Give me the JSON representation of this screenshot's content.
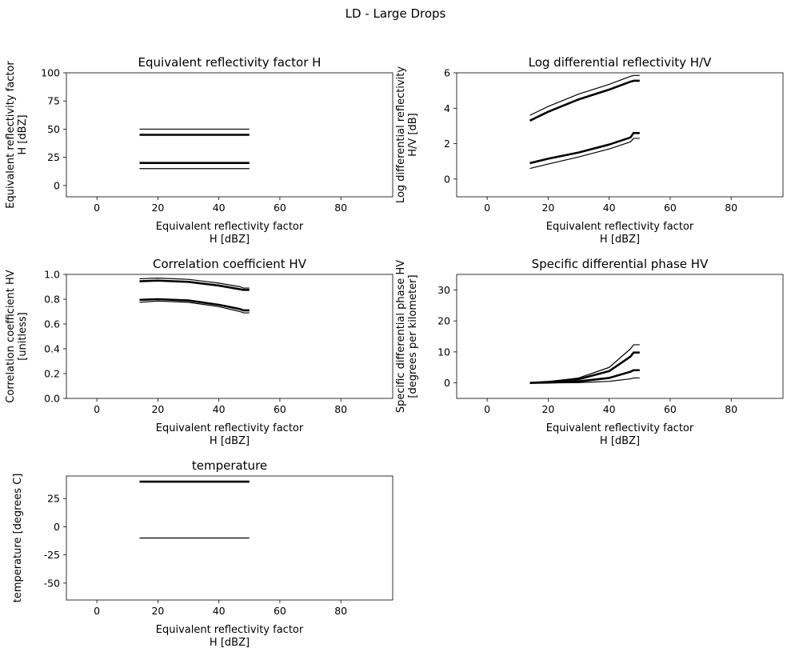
{
  "figure": {
    "suptitle": "LD - Large Drops"
  },
  "chart_data": [
    {
      "type": "line",
      "title": "Equivalent reflectivity factor H",
      "xlabel": [
        "Equivalent reflectivity factor",
        "H [dBZ]"
      ],
      "ylabel": [
        "Equivalent reflectivity factor",
        "H [dBZ]"
      ],
      "xlim": [
        -10,
        97
      ],
      "ylim": [
        -10,
        100
      ],
      "xticks": [
        0,
        20,
        40,
        60,
        80
      ],
      "yticks": [
        0,
        25,
        50,
        75,
        100
      ],
      "grid": false,
      "series": [
        {
          "weight": "thin",
          "x": [
            14,
            50
          ],
          "y": [
            50,
            50
          ]
        },
        {
          "weight": "thick",
          "x": [
            14,
            50
          ],
          "y": [
            45,
            45
          ]
        },
        {
          "weight": "thick",
          "x": [
            14,
            50
          ],
          "y": [
            20,
            20
          ]
        },
        {
          "weight": "thin",
          "x": [
            14,
            50
          ],
          "y": [
            15,
            15
          ]
        }
      ]
    },
    {
      "type": "line",
      "title": "Log differential reflectivity H/V",
      "xlabel": [
        "Equivalent reflectivity factor",
        "H [dBZ]"
      ],
      "ylabel": [
        "Log differential reflectivity",
        "H/V [dB]"
      ],
      "xlim": [
        -10,
        97
      ],
      "ylim": [
        -1,
        6
      ],
      "xticks": [
        0,
        20,
        40,
        60,
        80
      ],
      "yticks": [
        0,
        2,
        4,
        6
      ],
      "grid": false,
      "series": [
        {
          "weight": "thin",
          "x": [
            14,
            20,
            30,
            40,
            47,
            48,
            50
          ],
          "y": [
            3.6,
            4.1,
            4.8,
            5.35,
            5.8,
            5.85,
            5.85
          ]
        },
        {
          "weight": "thick",
          "x": [
            14,
            20,
            30,
            40,
            47,
            48,
            50
          ],
          "y": [
            3.3,
            3.8,
            4.5,
            5.05,
            5.5,
            5.55,
            5.55
          ]
        },
        {
          "weight": "thick",
          "x": [
            14,
            20,
            30,
            40,
            47,
            48,
            50
          ],
          "y": [
            0.9,
            1.15,
            1.5,
            1.95,
            2.35,
            2.6,
            2.6
          ]
        },
        {
          "weight": "thin",
          "x": [
            14,
            20,
            30,
            40,
            47,
            48,
            50
          ],
          "y": [
            0.6,
            0.85,
            1.25,
            1.7,
            2.1,
            2.3,
            2.3
          ]
        }
      ]
    },
    {
      "type": "line",
      "title": "Correlation coefficient HV",
      "xlabel": [
        "Equivalent reflectivity factor",
        "H [dBZ]"
      ],
      "ylabel": [
        "Correlation coefficient HV",
        "[unitless]"
      ],
      "xlim": [
        -10,
        97
      ],
      "ylim": [
        0,
        1
      ],
      "xticks": [
        0,
        20,
        40,
        60,
        80
      ],
      "yticks": [
        0.0,
        0.2,
        0.4,
        0.6,
        0.8,
        1.0
      ],
      "grid": false,
      "series": [
        {
          "weight": "thin",
          "x": [
            14,
            20,
            30,
            40,
            47,
            48,
            50
          ],
          "y": [
            0.965,
            0.97,
            0.96,
            0.93,
            0.9,
            0.89,
            0.89
          ]
        },
        {
          "weight": "thick",
          "x": [
            14,
            20,
            30,
            40,
            47,
            48,
            50
          ],
          "y": [
            0.945,
            0.95,
            0.94,
            0.91,
            0.88,
            0.875,
            0.875
          ]
        },
        {
          "weight": "thick",
          "x": [
            14,
            20,
            30,
            40,
            47,
            48,
            50
          ],
          "y": [
            0.795,
            0.8,
            0.79,
            0.755,
            0.72,
            0.71,
            0.71
          ]
        },
        {
          "weight": "thin",
          "x": [
            14,
            20,
            30,
            40,
            47,
            48,
            50
          ],
          "y": [
            0.775,
            0.785,
            0.775,
            0.74,
            0.7,
            0.69,
            0.69
          ]
        }
      ]
    },
    {
      "type": "line",
      "title": "Specific differential phase HV",
      "xlabel": [
        "Equivalent reflectivity factor",
        "H [dBZ]"
      ],
      "ylabel": [
        "Specific differential phase HV",
        "[degrees per kilometer]"
      ],
      "xlim": [
        -10,
        97
      ],
      "ylim": [
        -5,
        35
      ],
      "xticks": [
        0,
        20,
        40,
        60,
        80
      ],
      "yticks": [
        0,
        10,
        20,
        30
      ],
      "grid": false,
      "series": [
        {
          "weight": "thin",
          "x": [
            14,
            20,
            30,
            40,
            47,
            48,
            50
          ],
          "y": [
            0,
            0.4,
            1.6,
            5.0,
            11.0,
            12.3,
            12.3
          ]
        },
        {
          "weight": "thick",
          "x": [
            14,
            20,
            30,
            40,
            47,
            48,
            50
          ],
          "y": [
            0,
            0.3,
            1.2,
            3.8,
            8.5,
            9.8,
            9.8
          ]
        },
        {
          "weight": "thick",
          "x": [
            14,
            20,
            30,
            40,
            47,
            48,
            50
          ],
          "y": [
            0,
            0.1,
            0.5,
            1.6,
            3.6,
            4.1,
            4.1
          ]
        },
        {
          "weight": "thin",
          "x": [
            14,
            20,
            30,
            40,
            47,
            48,
            50
          ],
          "y": [
            0,
            0,
            0.1,
            0.5,
            1.3,
            1.6,
            1.6
          ]
        }
      ]
    },
    {
      "type": "line",
      "title": "temperature",
      "xlabel": [
        "Equivalent reflectivity factor",
        "H [dBZ]"
      ],
      "ylabel": [
        "temperature [degrees C]"
      ],
      "xlim": [
        -10,
        97
      ],
      "ylim": [
        -65,
        45
      ],
      "xticks": [
        0,
        20,
        40,
        60,
        80
      ],
      "yticks": [
        -50,
        -25,
        0,
        25
      ],
      "grid": false,
      "series": [
        {
          "weight": "thick",
          "x": [
            14,
            50
          ],
          "y": [
            40,
            40
          ]
        },
        {
          "weight": "thin",
          "x": [
            14,
            50
          ],
          "y": [
            -10,
            -10
          ]
        }
      ]
    }
  ]
}
